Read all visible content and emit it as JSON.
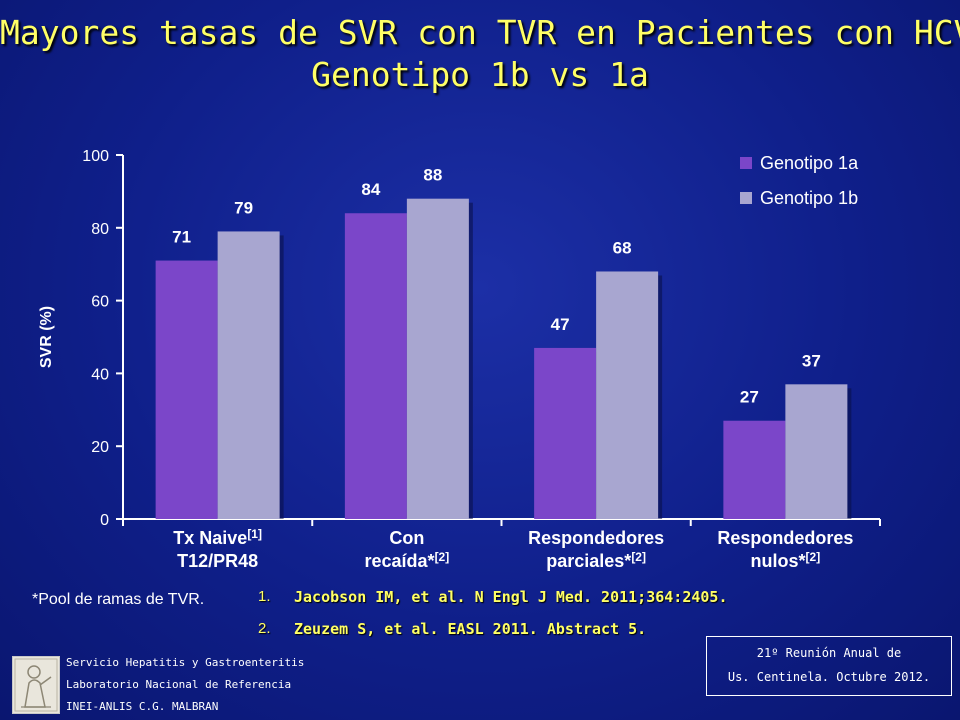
{
  "title": {
    "line1": "Mayores tasas de SVR con TVR en Pacientes con HCV",
    "line2": "Genotipo 1b vs 1a"
  },
  "chart_data": {
    "type": "bar",
    "ylabel": "SVR (%)",
    "ylim": [
      0,
      100
    ],
    "yticks": [
      0,
      20,
      40,
      60,
      80,
      100
    ],
    "legend_position": "top-right",
    "categories": [
      {
        "line1": "Tx Naive",
        "sup1": "[1]",
        "line2": "T12/PR48",
        "sup2": ""
      },
      {
        "line1": "Con",
        "sup1": "",
        "line2": "recaída*",
        "sup2": "[2]"
      },
      {
        "line1": "Respondedores",
        "sup1": "",
        "line2": "parciales*",
        "sup2": "[2]"
      },
      {
        "line1": "Respondedores",
        "sup1": "",
        "line2": "nulos*",
        "sup2": "[2]"
      }
    ],
    "series": [
      {
        "name": "Genotipo 1a",
        "color": "#7b46c9",
        "values": [
          71,
          84,
          47,
          27
        ]
      },
      {
        "name": "Genotipo 1b",
        "color": "#a8a6d0",
        "values": [
          79,
          88,
          68,
          37
        ]
      }
    ]
  },
  "footnote": "*Pool de ramas de TVR.",
  "references": [
    {
      "num": "1.",
      "text": "Jacobson IM, et al. N Engl J Med. 2011;364:2405."
    },
    {
      "num": "2.",
      "text": "Zeuzem S, et al. EASL 2011. Abstract 5."
    }
  ],
  "institution": {
    "line1": "Servicio Hepatitis y Gastroenteritis",
    "line2": "Laboratorio Nacional de Referencia",
    "line3": "INEI-ANLIS C.G. MALBRAN"
  },
  "meeting": {
    "line1": "21º Reunión Anual de",
    "line2": "Us. Centinela. Octubre 2012."
  },
  "colors": {
    "title": "#ffff66",
    "background": "#0f1f8a"
  }
}
